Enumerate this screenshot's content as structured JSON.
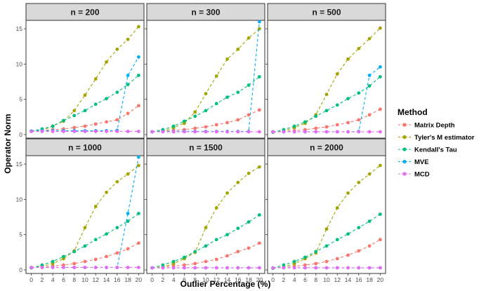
{
  "chart_data": {
    "type": "line",
    "xlabel": "Outlier Percentage (%)",
    "ylabel": "Operator Norm",
    "x": [
      0,
      2,
      4,
      6,
      8,
      10,
      12,
      14,
      16,
      18,
      20
    ],
    "xticks": [
      "0",
      "2",
      "4",
      "6",
      "8",
      "10",
      "12",
      "14",
      "16",
      "18",
      "20"
    ],
    "ylim": [
      0,
      16
    ],
    "yticks": [
      "0",
      "5",
      "10",
      "15"
    ],
    "legend": {
      "title": "Method",
      "position": "right",
      "entries": [
        "Matrix Depth",
        "Tyler's M estimator",
        "Kendall's Tau",
        "MVE",
        "MCD"
      ]
    },
    "colors": {
      "Matrix Depth": "#F8766D",
      "Tyler's M estimator": "#A3A500",
      "Kendall's Tau": "#00BF7D",
      "MVE": "#00B0F6",
      "MCD": "#E76BF3"
    },
    "facets": [
      {
        "label": "n = 200",
        "series": [
          {
            "name": "Matrix Depth",
            "values": [
              0.5,
              0.6,
              0.7,
              0.8,
              1.0,
              1.2,
              1.5,
              1.8,
              2.1,
              3.0,
              4.1
            ]
          },
          {
            "name": "Tyler's M estimator",
            "values": [
              0.5,
              0.6,
              1.2,
              1.9,
              3.4,
              5.6,
              7.9,
              10.3,
              12.1,
              13.5,
              15.3
            ]
          },
          {
            "name": "Kendall's Tau",
            "values": [
              0.5,
              0.8,
              1.2,
              2.0,
              2.7,
              3.4,
              4.3,
              5.1,
              6.0,
              7.1,
              8.4
            ]
          },
          {
            "name": "MVE",
            "values": [
              0.5,
              0.55,
              0.55,
              0.55,
              0.55,
              0.55,
              0.55,
              0.55,
              0.6,
              8.4,
              11.0
            ]
          },
          {
            "name": "MCD",
            "values": [
              0.45,
              0.45,
              0.45,
              0.45,
              0.45,
              0.45,
              0.45,
              0.45,
              0.45,
              0.45,
              0.45
            ]
          }
        ]
      },
      {
        "label": "n = 300",
        "series": [
          {
            "name": "Matrix Depth",
            "values": [
              0.4,
              0.5,
              0.6,
              0.7,
              0.9,
              1.1,
              1.4,
              1.7,
              2.1,
              2.8,
              3.5
            ]
          },
          {
            "name": "Tyler's M estimator",
            "values": [
              0.4,
              0.5,
              1.0,
              1.6,
              3.2,
              5.8,
              8.3,
              10.7,
              12.1,
              13.7,
              15.0
            ]
          },
          {
            "name": "Kendall's Tau",
            "values": [
              0.4,
              0.7,
              1.2,
              1.9,
              2.6,
              3.4,
              4.4,
              5.3,
              6.0,
              7.0,
              8.2
            ]
          },
          {
            "name": "MVE",
            "values": [
              0.4,
              0.45,
              0.45,
              0.45,
              0.45,
              0.45,
              0.45,
              0.45,
              0.45,
              0.45,
              16.0
            ]
          },
          {
            "name": "MCD",
            "values": [
              0.4,
              0.4,
              0.4,
              0.4,
              0.4,
              0.4,
              0.4,
              0.4,
              0.4,
              0.4,
              0.4
            ]
          }
        ]
      },
      {
        "label": "n = 500",
        "series": [
          {
            "name": "Matrix Depth",
            "values": [
              0.35,
              0.45,
              0.55,
              0.7,
              0.9,
              1.1,
              1.4,
              1.7,
              2.1,
              2.8,
              3.6
            ]
          },
          {
            "name": "Tyler's M estimator",
            "values": [
              0.35,
              0.5,
              1.0,
              1.6,
              2.8,
              5.7,
              8.6,
              10.7,
              12.2,
              13.6,
              15.1
            ]
          },
          {
            "name": "Kendall's Tau",
            "values": [
              0.35,
              0.7,
              1.2,
              1.8,
              2.6,
              3.4,
              4.2,
              5.1,
              5.9,
              6.9,
              8.2
            ]
          },
          {
            "name": "MVE",
            "values": [
              0.4,
              0.4,
              0.4,
              0.4,
              0.4,
              0.4,
              0.4,
              0.4,
              0.45,
              8.4,
              9.6
            ]
          },
          {
            "name": "MCD",
            "values": [
              0.4,
              0.4,
              0.4,
              0.4,
              0.4,
              0.4,
              0.4,
              0.4,
              0.4,
              0.4,
              0.4
            ]
          }
        ]
      },
      {
        "label": "n = 1000",
        "series": [
          {
            "name": "Matrix Depth",
            "values": [
              0.3,
              0.4,
              0.55,
              0.7,
              0.9,
              1.2,
              1.5,
              1.9,
              2.4,
              3.0,
              3.8
            ]
          },
          {
            "name": "Tyler's M estimator",
            "values": [
              0.3,
              0.5,
              0.9,
              1.6,
              2.7,
              6.0,
              9.0,
              11.0,
              12.5,
              13.6,
              14.8
            ]
          },
          {
            "name": "Kendall's Tau",
            "values": [
              0.3,
              0.7,
              1.2,
              1.9,
              2.6,
              3.4,
              4.3,
              5.1,
              6.0,
              6.9,
              8.0
            ]
          },
          {
            "name": "MVE",
            "values": [
              0.35,
              0.35,
              0.35,
              0.35,
              0.35,
              0.35,
              0.35,
              0.35,
              0.35,
              8.0,
              16.0
            ]
          },
          {
            "name": "MCD",
            "values": [
              0.35,
              0.35,
              0.35,
              0.35,
              0.35,
              0.35,
              0.35,
              0.35,
              0.35,
              0.35,
              0.35
            ]
          }
        ]
      },
      {
        "label": "n = 1500",
        "series": [
          {
            "name": "Matrix Depth",
            "values": [
              0.3,
              0.4,
              0.55,
              0.7,
              0.9,
              1.2,
              1.5,
              2.0,
              2.6,
              3.1,
              3.8
            ]
          },
          {
            "name": "Tyler's M estimator",
            "values": [
              0.3,
              0.4,
              0.9,
              1.6,
              2.5,
              6.0,
              8.8,
              10.9,
              12.4,
              13.7,
              14.6
            ]
          },
          {
            "name": "Kendall's Tau",
            "values": [
              0.3,
              0.7,
              1.2,
              1.8,
              2.6,
              3.4,
              4.3,
              5.0,
              5.9,
              6.8,
              7.8
            ]
          },
          {
            "name": "MVE",
            "values": [
              0.3,
              0.3,
              0.3,
              0.3,
              0.3,
              0.3,
              0.3,
              0.3,
              0.3,
              0.3,
              0.3
            ]
          },
          {
            "name": "MCD",
            "values": [
              0.3,
              0.3,
              0.3,
              0.3,
              0.3,
              0.3,
              0.3,
              0.3,
              0.3,
              0.3,
              0.3
            ]
          }
        ]
      },
      {
        "label": "n = 2000",
        "series": [
          {
            "name": "Matrix Depth",
            "values": [
              0.25,
              0.35,
              0.5,
              0.7,
              0.9,
              1.2,
              1.6,
              2.1,
              2.7,
              3.4,
              4.3
            ]
          },
          {
            "name": "Tyler's M estimator",
            "values": [
              0.25,
              0.4,
              0.9,
              1.6,
              2.4,
              5.8,
              8.8,
              10.9,
              12.4,
              13.6,
              14.8
            ]
          },
          {
            "name": "Kendall's Tau",
            "values": [
              0.25,
              0.7,
              1.2,
              1.8,
              2.6,
              3.4,
              4.3,
              5.1,
              6.0,
              6.9,
              7.9
            ]
          },
          {
            "name": "MVE",
            "values": [
              0.3,
              0.3,
              0.3,
              0.3,
              0.3,
              0.3,
              0.3,
              0.3,
              0.3,
              0.3,
              0.3
            ]
          },
          {
            "name": "MCD",
            "values": [
              0.3,
              0.3,
              0.3,
              0.3,
              0.3,
              0.3,
              0.3,
              0.3,
              0.3,
              0.3,
              0.3
            ]
          }
        ]
      }
    ]
  }
}
